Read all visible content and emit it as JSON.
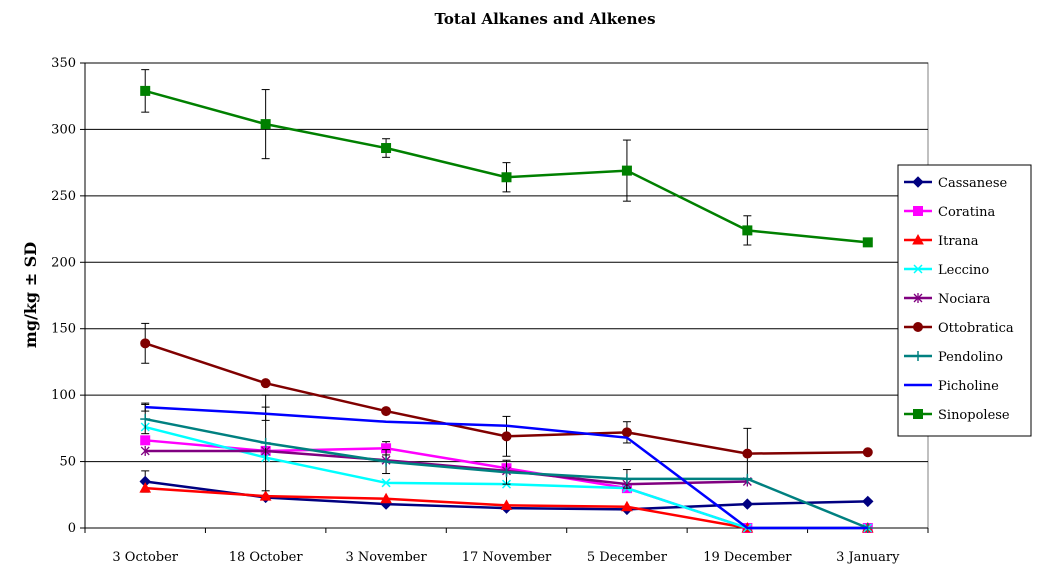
{
  "chart_data": {
    "type": "line",
    "title": "Total Alkanes and Alkenes",
    "xlabel": "",
    "ylabel": "mg/kg ± SD",
    "ylim": [
      0,
      350
    ],
    "yticks": [
      0,
      50,
      100,
      150,
      200,
      250,
      300,
      350
    ],
    "grid": true,
    "legend_position": "right",
    "categories": [
      "3 October",
      "18 October",
      "3 November",
      "17 November",
      "5 December",
      "19 December",
      "3 January"
    ],
    "series": [
      {
        "name": "Cassanese",
        "color": "#000080",
        "marker": "diamond",
        "values": [
          35,
          23,
          18,
          15,
          14,
          18,
          20
        ],
        "error": [
          8,
          null,
          null,
          null,
          null,
          null,
          null
        ]
      },
      {
        "name": "Coratina",
        "color": "#ff00ff",
        "marker": "square",
        "values": [
          66,
          58,
          60,
          45,
          30,
          0,
          0
        ],
        "error": [
          null,
          null,
          5,
          null,
          null,
          null,
          null
        ]
      },
      {
        "name": "Itrana",
        "color": "#ff0000",
        "marker": "triangle",
        "values": [
          30,
          24,
          22,
          17,
          16,
          0,
          0
        ],
        "error": [
          null,
          null,
          null,
          null,
          null,
          null,
          null
        ]
      },
      {
        "name": "Leccino",
        "color": "#00ffff",
        "marker": "x",
        "values": [
          76,
          53,
          34,
          33,
          30,
          0,
          0
        ],
        "error": [
          null,
          null,
          null,
          null,
          null,
          null,
          null
        ]
      },
      {
        "name": "Nociara",
        "color": "#800080",
        "marker": "asterisk",
        "values": [
          58,
          58,
          51,
          43,
          33,
          35,
          null
        ],
        "error": [
          null,
          null,
          null,
          null,
          null,
          null,
          null
        ]
      },
      {
        "name": "Ottobratica",
        "color": "#800000",
        "marker": "circle",
        "values": [
          139,
          109,
          88,
          69,
          72,
          56,
          57
        ],
        "error": [
          15,
          null,
          null,
          15,
          8,
          19,
          null
        ]
      },
      {
        "name": "Pendolino",
        "color": "#008080",
        "marker": "plus",
        "values": [
          82,
          64,
          50,
          42,
          37,
          37,
          0
        ],
        "error": [
          11,
          36,
          9,
          9,
          7,
          null,
          null
        ]
      },
      {
        "name": "Picholine",
        "color": "#0000ff",
        "marker": "none",
        "values": [
          91,
          86,
          80,
          77,
          68,
          0,
          0
        ],
        "error": [
          3,
          5,
          null,
          null,
          null,
          null,
          null
        ]
      },
      {
        "name": "Sinopolese",
        "color": "#008000",
        "marker": "square",
        "values": [
          329,
          304,
          286,
          264,
          269,
          224,
          215
        ],
        "error": [
          16,
          26,
          7,
          11,
          23,
          11,
          null
        ]
      }
    ]
  }
}
